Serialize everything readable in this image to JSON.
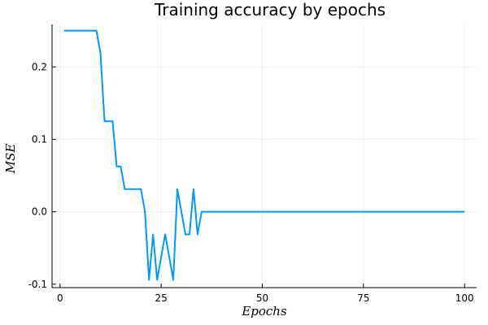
{
  "chart_data": {
    "type": "line",
    "title": "Training accuracy by epochs",
    "xlabel": "Epochs",
    "ylabel": "MSE",
    "xlim": [
      -1.97,
      102.97
    ],
    "ylim": [
      -0.1047,
      0.2587
    ],
    "xticks": [
      0,
      25,
      50,
      75,
      100
    ],
    "xtick_labels": [
      "0",
      "25",
      "50",
      "75",
      "100"
    ],
    "yticks": [
      -0.1,
      0.0,
      0.1,
      0.2
    ],
    "ytick_labels": [
      "-0.1",
      "0.0",
      "0.1",
      "0.2"
    ],
    "grid": true,
    "legend": "none",
    "series": [
      {
        "color": "#009AFA",
        "x": [
          1,
          2,
          3,
          4,
          5,
          6,
          7,
          8,
          9,
          10,
          11,
          12,
          13,
          14,
          15,
          16,
          17,
          18,
          19,
          20,
          21,
          22,
          23,
          24,
          25,
          26,
          27,
          28,
          29,
          30,
          31,
          32,
          33,
          34,
          35,
          36,
          37,
          38,
          39,
          40,
          41,
          42,
          43,
          44,
          45,
          46,
          47,
          48,
          49,
          50,
          51,
          52,
          53,
          54,
          55,
          56,
          57,
          58,
          59,
          60,
          61,
          62,
          63,
          64,
          65,
          66,
          67,
          68,
          69,
          70,
          71,
          72,
          73,
          74,
          75,
          76,
          77,
          78,
          79,
          80,
          81,
          82,
          83,
          84,
          85,
          86,
          87,
          88,
          89,
          90,
          91,
          92,
          93,
          94,
          95,
          96,
          97,
          98,
          99,
          100
        ],
        "values": [
          0.25,
          0.25,
          0.25,
          0.25,
          0.25,
          0.25,
          0.25,
          0.25,
          0.25,
          0.219,
          0.125,
          0.125,
          0.125,
          0.0625,
          0.0625,
          0.03125,
          0.03125,
          0.03125,
          0.03125,
          0.03125,
          0.0,
          -0.094,
          -0.03125,
          -0.094,
          -0.0625,
          -0.03125,
          -0.0625,
          -0.094,
          0.03125,
          0.0,
          -0.03125,
          -0.03125,
          0.03125,
          -0.03125,
          0.0,
          0.0,
          0.0,
          0.0,
          0.0,
          0.0,
          0.0,
          0.0,
          0.0,
          0.0,
          0.0,
          0.0,
          0.0,
          0.0,
          0.0,
          0.0,
          0.0,
          0.0,
          0.0,
          0.0,
          0.0,
          0.0,
          0.0,
          0.0,
          0.0,
          0.0,
          0.0,
          0.0,
          0.0,
          0.0,
          0.0,
          0.0,
          0.0,
          0.0,
          0.0,
          0.0,
          0.0,
          0.0,
          0.0,
          0.0,
          0.0,
          0.0,
          0.0,
          0.0,
          0.0,
          0.0,
          0.0,
          0.0,
          0.0,
          0.0,
          0.0,
          0.0,
          0.0,
          0.0,
          0.0,
          0.0,
          0.0,
          0.0,
          0.0,
          0.0,
          0.0,
          0.0,
          0.0,
          0.0,
          0.0,
          0.0
        ]
      }
    ]
  }
}
